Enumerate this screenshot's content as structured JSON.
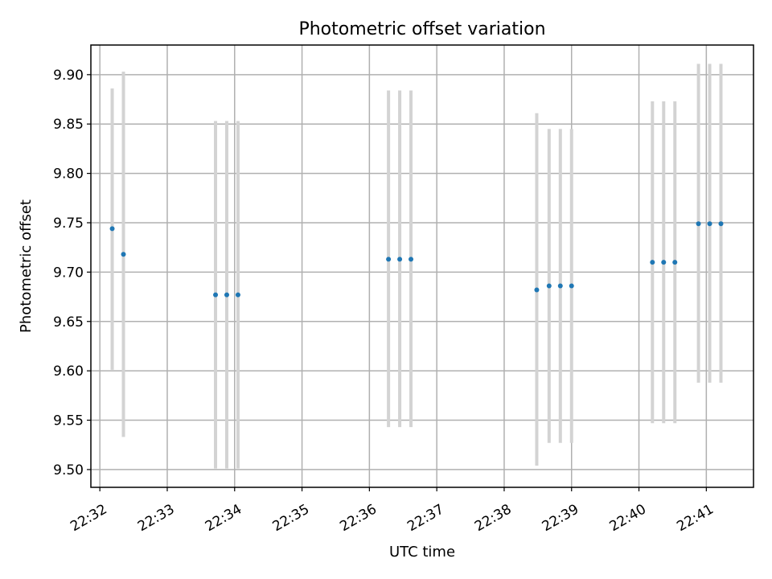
{
  "chart_data": {
    "type": "scatter",
    "title": "Photometric offset variation",
    "xlabel": "UTC time",
    "ylabel": "Photometric offset",
    "x_axis_type": "time",
    "xlim": [
      "22:31:52",
      "22:41:42"
    ],
    "ylim": [
      9.482,
      9.93
    ],
    "grid": true,
    "xticks": [
      "22:32",
      "22:33",
      "22:34",
      "22:35",
      "22:36",
      "22:37",
      "22:38",
      "22:39",
      "22:40",
      "22:41"
    ],
    "yticks": [
      "9.50",
      "9.55",
      "9.60",
      "9.65",
      "9.70",
      "9.75",
      "9.80",
      "9.85",
      "9.90"
    ],
    "marker_color": "#1f77b4",
    "errorbar_color": "#d3d3d3",
    "points": [
      {
        "x": "22:32:11",
        "y": 9.744,
        "ylow": 9.601,
        "yhigh": 9.886
      },
      {
        "x": "22:32:21",
        "y": 9.718,
        "ylow": 9.533,
        "yhigh": 9.903
      },
      {
        "x": "22:33:43",
        "y": 9.677,
        "ylow": 9.501,
        "yhigh": 9.853
      },
      {
        "x": "22:33:53",
        "y": 9.677,
        "ylow": 9.501,
        "yhigh": 9.853
      },
      {
        "x": "22:34:03",
        "y": 9.677,
        "ylow": 9.501,
        "yhigh": 9.853
      },
      {
        "x": "22:36:17",
        "y": 9.713,
        "ylow": 9.543,
        "yhigh": 9.884
      },
      {
        "x": "22:36:27",
        "y": 9.713,
        "ylow": 9.543,
        "yhigh": 9.884
      },
      {
        "x": "22:36:37",
        "y": 9.713,
        "ylow": 9.543,
        "yhigh": 9.884
      },
      {
        "x": "22:38:29",
        "y": 9.682,
        "ylow": 9.504,
        "yhigh": 9.861
      },
      {
        "x": "22:38:40",
        "y": 9.686,
        "ylow": 9.527,
        "yhigh": 9.845
      },
      {
        "x": "22:38:50",
        "y": 9.686,
        "ylow": 9.527,
        "yhigh": 9.845
      },
      {
        "x": "22:39:00",
        "y": 9.686,
        "ylow": 9.527,
        "yhigh": 9.845
      },
      {
        "x": "22:40:12",
        "y": 9.71,
        "ylow": 9.547,
        "yhigh": 9.873
      },
      {
        "x": "22:40:22",
        "y": 9.71,
        "ylow": 9.547,
        "yhigh": 9.873
      },
      {
        "x": "22:40:32",
        "y": 9.71,
        "ylow": 9.547,
        "yhigh": 9.873
      },
      {
        "x": "22:40:53",
        "y": 9.749,
        "ylow": 9.588,
        "yhigh": 9.911
      },
      {
        "x": "22:41:03",
        "y": 9.749,
        "ylow": 9.588,
        "yhigh": 9.911
      },
      {
        "x": "22:41:13",
        "y": 9.749,
        "ylow": 9.588,
        "yhigh": 9.911
      }
    ]
  }
}
